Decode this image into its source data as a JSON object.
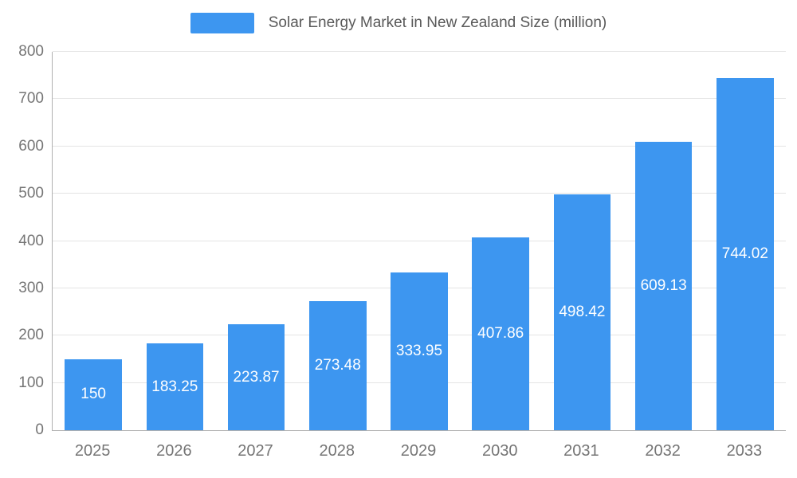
{
  "chart_data": {
    "type": "bar",
    "title": "Solar Energy Market in New Zealand Size (million)",
    "categories": [
      "2025",
      "2026",
      "2027",
      "2028",
      "2029",
      "2030",
      "2031",
      "2032",
      "2033"
    ],
    "values": [
      150,
      183.25,
      223.87,
      273.48,
      333.95,
      407.86,
      498.42,
      609.13,
      744.02
    ],
    "value_labels": [
      "150",
      "183.25",
      "223.87",
      "273.48",
      "333.95",
      "407.86",
      "498.42",
      "609.13",
      "744.02"
    ],
    "xlabel": "",
    "ylabel": "",
    "ylim": [
      0,
      800
    ],
    "yticks": [
      0,
      100,
      200,
      300,
      400,
      500,
      600,
      700,
      800
    ],
    "grid": true,
    "legend_position": "top",
    "bar_color": "#3d96f0",
    "value_label_color": "#ffffff",
    "axis_label_color": "#757575"
  }
}
